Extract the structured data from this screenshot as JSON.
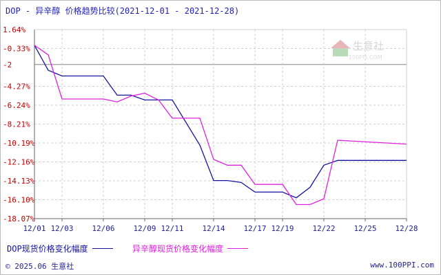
{
  "title": "DOP - 异辛醇 价格趋势比较(2021-12-01 - 2021-12-28)",
  "footer": {
    "copyright": "© 2025.06 生意社",
    "site": "www.100PPI.com"
  },
  "watermark": {
    "text": "生意社",
    "sub": "100PPI.COM"
  },
  "colors": {
    "dop": "#1414a0",
    "octanol": "#e020e0",
    "axis": "#666666",
    "grid": "#cfcfcf",
    "ytick": "#c00000"
  },
  "chart_data": {
    "type": "line",
    "title": "DOP - 异辛醇 价格趋势比较(2021-12-01 - 2021-12-28)",
    "xlabel": "",
    "ylabel": "",
    "ylim": [
      -18.07,
      1.64
    ],
    "baseline": -2,
    "grid": true,
    "legend_position": "bottom",
    "x_ticks": [
      "12/01",
      "12/03",
      "12/06",
      "12/09",
      "12/11",
      "12/14",
      "12/17",
      "12/19",
      "12/22",
      "12/25",
      "12/28"
    ],
    "y_ticks": [
      "1.64%",
      "-0.33%",
      "-2",
      "-4.27%",
      "-6.24%",
      "-8.21%",
      "-10.19%",
      "-12.16%",
      "-14.13%",
      "-16.10%",
      "-18.07%"
    ],
    "y_tick_values": [
      1.64,
      -0.33,
      -2,
      -4.27,
      -6.24,
      -8.21,
      -10.19,
      -12.16,
      -14.13,
      -16.1,
      -18.07
    ],
    "series": [
      {
        "name": "DOP现货价格变化幅度",
        "x": [
          "12/01",
          "12/02",
          "12/03",
          "12/06",
          "12/07",
          "12/08",
          "12/09",
          "12/10",
          "12/11",
          "12/13",
          "12/14",
          "12/15",
          "12/16",
          "12/17",
          "12/19",
          "12/20",
          "12/21",
          "12/22",
          "12/23",
          "12/28"
        ],
        "values": [
          0,
          -2.6,
          -3.2,
          -3.2,
          -5.2,
          -5.2,
          -5.7,
          -5.7,
          -5.7,
          -10.4,
          -14.1,
          -14.1,
          -14.3,
          -15.3,
          -15.3,
          -15.9,
          -14.8,
          -12.5,
          -12.0,
          -12.0
        ]
      },
      {
        "name": "异辛醇现货价格变化幅度",
        "x": [
          "12/01",
          "12/02",
          "12/03",
          "12/06",
          "12/07",
          "12/08",
          "12/09",
          "12/10",
          "12/11",
          "12/13",
          "12/14",
          "12/15",
          "12/16",
          "12/17",
          "12/19",
          "12/20",
          "12/21",
          "12/22",
          "12/23",
          "12/28"
        ],
        "values": [
          0,
          -1.0,
          -5.6,
          -5.6,
          -5.9,
          -5.3,
          -5.0,
          -5.7,
          -7.6,
          -7.6,
          -11.9,
          -12.5,
          -12.5,
          -14.5,
          -14.5,
          -16.6,
          -16.6,
          -16.0,
          -9.9,
          -10.3
        ]
      }
    ]
  },
  "legend": [
    {
      "label": "DOP现货价格变化幅度",
      "color": "#1414a0"
    },
    {
      "label": "异辛醇现货价格变化幅度",
      "color": "#e020e0"
    }
  ]
}
